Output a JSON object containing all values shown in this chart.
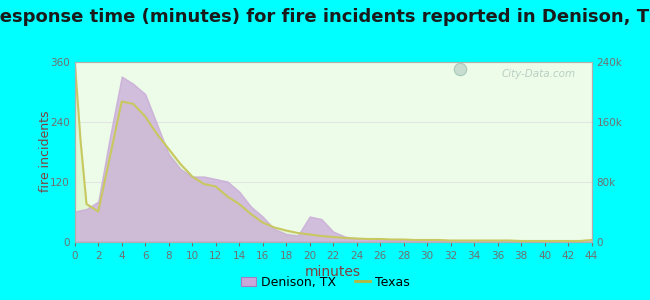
{
  "title": "Response time (minutes) for fire incidents reported in Denison, TX",
  "xlabel": "minutes",
  "ylabel_left": "fire incidents",
  "background_color": "#00ffff",
  "plot_bg_color": "#edfce8",
  "xlim": [
    0,
    44
  ],
  "ylim_left": [
    0,
    360
  ],
  "ylim_right": [
    0,
    240000
  ],
  "xticks": [
    0,
    2,
    4,
    6,
    8,
    10,
    12,
    14,
    16,
    18,
    20,
    22,
    24,
    26,
    28,
    30,
    32,
    34,
    36,
    38,
    40,
    42,
    44
  ],
  "yticks_left": [
    0,
    120,
    240,
    360
  ],
  "yticks_right": [
    0,
    80000,
    160000,
    240000
  ],
  "ytick_labels_right": [
    "0",
    "80k",
    "160k",
    "240k"
  ],
  "denison_x": [
    0,
    1,
    2,
    3,
    4,
    5,
    6,
    7,
    8,
    9,
    10,
    11,
    12,
    13,
    14,
    15,
    16,
    17,
    18,
    19,
    20,
    21,
    22,
    23,
    24,
    25,
    26,
    27,
    28,
    29,
    30,
    31,
    32,
    33,
    34,
    35,
    36,
    37,
    38,
    39,
    40,
    41,
    42,
    43,
    44
  ],
  "denison_y": [
    60,
    65,
    80,
    210,
    330,
    315,
    295,
    235,
    175,
    145,
    130,
    130,
    125,
    120,
    100,
    70,
    50,
    25,
    15,
    12,
    50,
    45,
    20,
    10,
    6,
    5,
    4,
    4,
    3,
    3,
    2,
    2,
    1,
    1,
    1,
    1,
    1,
    1,
    1,
    0,
    0,
    0,
    0,
    0,
    0
  ],
  "texas_x": [
    0,
    0.5,
    1,
    2,
    3,
    4,
    5,
    6,
    7,
    8,
    9,
    10,
    11,
    12,
    13,
    14,
    15,
    16,
    17,
    18,
    19,
    20,
    21,
    22,
    23,
    24,
    25,
    26,
    27,
    28,
    29,
    30,
    31,
    32,
    33,
    34,
    35,
    36,
    37,
    38,
    39,
    40,
    41,
    42,
    43,
    44
  ],
  "texas_y": [
    360,
    200,
    75,
    60,
    170,
    280,
    275,
    250,
    215,
    185,
    155,
    130,
    115,
    110,
    90,
    75,
    55,
    38,
    28,
    22,
    17,
    14,
    11,
    9,
    7,
    6,
    5,
    5,
    4,
    4,
    3,
    3,
    3,
    2,
    2,
    2,
    2,
    2,
    2,
    1,
    1,
    1,
    1,
    1,
    1,
    3
  ],
  "denison_fill_color": "#c8a8d8",
  "denison_fill_alpha": 0.75,
  "texas_line_color": "#c8c860",
  "texas_fill_color": "#e0f5d0",
  "texas_fill_alpha": 0.85,
  "legend_denison_color": "#c8a8d8",
  "legend_texas_color": "#b8b840",
  "watermark_text": "City-Data.com",
  "title_fontsize": 13,
  "axis_label_color": "#804040",
  "tick_color": "#707070",
  "grid_color": "#e0e0e0"
}
